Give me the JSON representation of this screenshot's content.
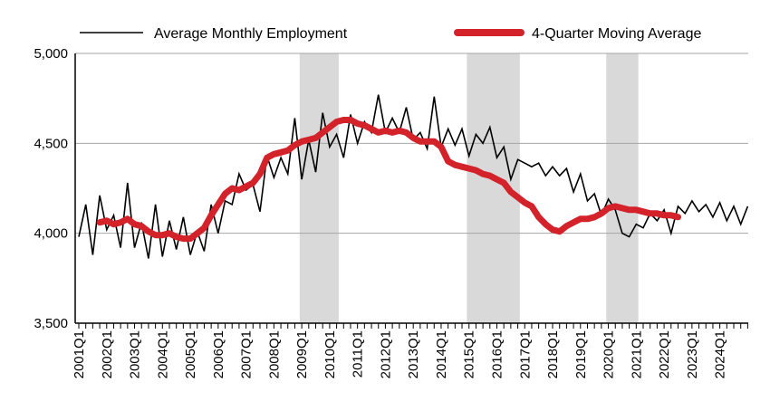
{
  "chart_data": {
    "type": "line",
    "title": "",
    "xlabel": "",
    "ylabel": "",
    "ylim": [
      3500,
      5000
    ],
    "y_ticks": [
      "3,500",
      "4,000",
      "4,500",
      "5,000"
    ],
    "y_tick_values": [
      3500,
      4000,
      4500,
      5000
    ],
    "grid": "horizontal",
    "legend_position": "top",
    "x_labels": [
      "2001Q1",
      "2002Q1",
      "2003Q1",
      "2004Q1",
      "2005Q1",
      "2006Q1",
      "2007Q1",
      "2008Q1",
      "2009Q1",
      "2010Q1",
      "2011Q1",
      "2012Q1",
      "2013Q1",
      "2014Q1",
      "2015Q1",
      "2016Q1",
      "2017Q1",
      "2018Q1",
      "2019Q1",
      "2020Q1",
      "2021Q1",
      "2022Q1",
      "2023Q1",
      "2024Q1"
    ],
    "recession_bands": [
      {
        "start": "2009Q1",
        "end": "2010Q2"
      },
      {
        "start": "2015Q1",
        "end": "2016Q4"
      },
      {
        "start": "2020Q1",
        "end": "2021Q1"
      }
    ],
    "colors": {
      "monthly": "#000000",
      "moving_average": "#d3222a",
      "band": "#d9d9d9",
      "grid": "#a6a6a6"
    },
    "series": [
      {
        "name": "Average Monthly Employment",
        "values": [
          3980,
          4160,
          3880,
          4210,
          4020,
          4100,
          3920,
          4280,
          3920,
          4060,
          3860,
          4160,
          3870,
          4070,
          3910,
          4090,
          3880,
          4010,
          3900,
          4160,
          4000,
          4180,
          4160,
          4330,
          4240,
          4270,
          4120,
          4430,
          4310,
          4420,
          4330,
          4640,
          4300,
          4520,
          4340,
          4670,
          4480,
          4550,
          4420,
          4660,
          4500,
          4620,
          4560,
          4770,
          4560,
          4640,
          4560,
          4700,
          4520,
          4560,
          4470,
          4760,
          4480,
          4580,
          4490,
          4580,
          4430,
          4550,
          4500,
          4590,
          4420,
          4480,
          4300,
          4410,
          4390,
          4370,
          4390,
          4320,
          4370,
          4320,
          4360,
          4230,
          4330,
          4180,
          4220,
          4100,
          4190,
          4130,
          4000,
          3980,
          4050,
          4030,
          4110,
          4070,
          4130,
          4000,
          4150,
          4110,
          4180,
          4120,
          4160,
          4090,
          4170,
          4070,
          4150,
          4050,
          4150
        ]
      },
      {
        "name": "4-Quarter Moving Average",
        "start_index": 3,
        "values": [
          4060,
          4070,
          4050,
          4060,
          4080,
          4050,
          4040,
          4010,
          3990,
          3990,
          4000,
          3980,
          3970,
          3970,
          4000,
          4030,
          4100,
          4160,
          4220,
          4250,
          4240,
          4260,
          4280,
          4330,
          4420,
          4440,
          4450,
          4460,
          4490,
          4510,
          4520,
          4530,
          4560,
          4590,
          4620,
          4630,
          4630,
          4610,
          4600,
          4580,
          4560,
          4570,
          4560,
          4570,
          4560,
          4530,
          4510,
          4510,
          4510,
          4480,
          4400,
          4380,
          4370,
          4360,
          4350,
          4330,
          4320,
          4300,
          4280,
          4230,
          4200,
          4170,
          4150,
          4090,
          4050,
          4020,
          4010,
          4040,
          4060,
          4080,
          4080,
          4090,
          4110,
          4140,
          4150,
          4140,
          4130,
          4130,
          4120,
          4110,
          4110,
          4100,
          4100,
          4090
        ]
      }
    ]
  }
}
